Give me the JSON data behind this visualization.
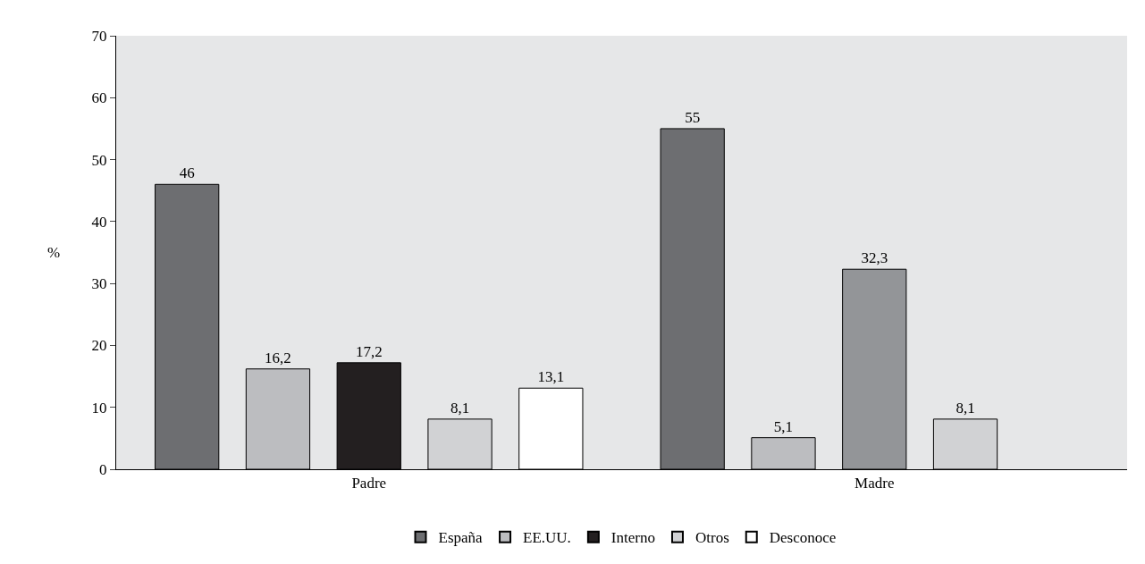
{
  "chart_data": {
    "type": "bar",
    "ylabel": "%",
    "categories": [
      "Padre",
      "Madre"
    ],
    "series": [
      {
        "name": "España",
        "color": "#6d6e71",
        "values": [
          46,
          55
        ],
        "value_labels": [
          "46",
          "55"
        ]
      },
      {
        "name": "EE.UU.",
        "color": "#bcbdc0",
        "values": [
          16.2,
          5.1
        ],
        "value_labels": [
          "16,2",
          "5,1"
        ]
      },
      {
        "name": "Interno",
        "color": "#231f20",
        "colors": [
          "#231f20",
          "#939598"
        ],
        "values": [
          17.2,
          32.3
        ],
        "value_labels": [
          "17,2",
          "32,3"
        ]
      },
      {
        "name": "Otros",
        "color": "#d1d2d4",
        "values": [
          8.1,
          8.1
        ],
        "value_labels": [
          "8,1",
          "8,1"
        ]
      },
      {
        "name": "Desconoce",
        "color": "#ffffff",
        "values": [
          13.1,
          null
        ],
        "value_labels": [
          "13,1",
          null
        ]
      }
    ],
    "ylim": [
      0,
      70
    ],
    "yticks": [
      0,
      10,
      20,
      30,
      40,
      50,
      60,
      70
    ],
    "grid": false,
    "legend": "bottom"
  }
}
